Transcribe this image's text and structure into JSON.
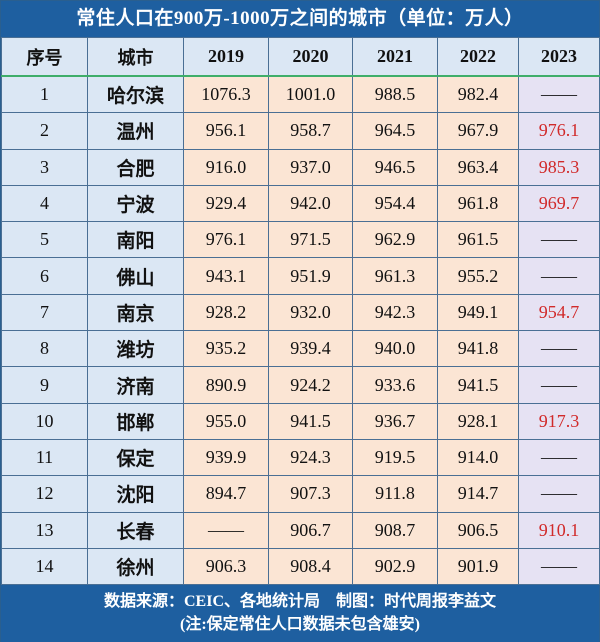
{
  "title": "常住人口在900万-1000万之间的城市（单位：万人）",
  "headers": [
    "序号",
    "城市",
    "2019",
    "2020",
    "2021",
    "2022",
    "2023"
  ],
  "rows": [
    {
      "no": "1",
      "city": "哈尔滨",
      "v": [
        "1076.3",
        "1001.0",
        "988.5",
        "982.4",
        "——"
      ],
      "r23": false
    },
    {
      "no": "2",
      "city": "温州",
      "v": [
        "956.1",
        "958.7",
        "964.5",
        "967.9",
        "976.1"
      ],
      "r23": true
    },
    {
      "no": "3",
      "city": "合肥",
      "v": [
        "916.0",
        "937.0",
        "946.5",
        "963.4",
        "985.3"
      ],
      "r23": true
    },
    {
      "no": "4",
      "city": "宁波",
      "v": [
        "929.4",
        "942.0",
        "954.4",
        "961.8",
        "969.7"
      ],
      "r23": true
    },
    {
      "no": "5",
      "city": "南阳",
      "v": [
        "976.1",
        "971.5",
        "962.9",
        "961.5",
        "——"
      ],
      "r23": false
    },
    {
      "no": "6",
      "city": "佛山",
      "v": [
        "943.1",
        "951.9",
        "961.3",
        "955.2",
        "——"
      ],
      "r23": false
    },
    {
      "no": "7",
      "city": "南京",
      "v": [
        "928.2",
        "932.0",
        "942.3",
        "949.1",
        "954.7"
      ],
      "r23": true
    },
    {
      "no": "8",
      "city": "潍坊",
      "v": [
        "935.2",
        "939.4",
        "940.0",
        "941.8",
        "——"
      ],
      "r23": false
    },
    {
      "no": "9",
      "city": "济南",
      "v": [
        "890.9",
        "924.2",
        "933.6",
        "941.5",
        "——"
      ],
      "r23": false
    },
    {
      "no": "10",
      "city": "邯郸",
      "v": [
        "955.0",
        "941.5",
        "936.7",
        "928.1",
        "917.3"
      ],
      "r23": true
    },
    {
      "no": "11",
      "city": "保定",
      "v": [
        "939.9",
        "924.3",
        "919.5",
        "914.0",
        "——"
      ],
      "r23": false
    },
    {
      "no": "12",
      "city": "沈阳",
      "v": [
        "894.7",
        "907.3",
        "911.8",
        "914.7",
        "——"
      ],
      "r23": false
    },
    {
      "no": "13",
      "city": "长春",
      "v": [
        "——",
        "906.7",
        "908.7",
        "906.5",
        "910.1"
      ],
      "r23": true
    },
    {
      "no": "14",
      "city": "徐州",
      "v": [
        "906.3",
        "908.4",
        "902.9",
        "901.9",
        "——"
      ],
      "r23": false
    }
  ],
  "footer": {
    "source": "数据来源：CEIC、各地统计局    制图：时代周报李益文",
    "note": "(注:保定常住人口数据未包含雄安)"
  }
}
